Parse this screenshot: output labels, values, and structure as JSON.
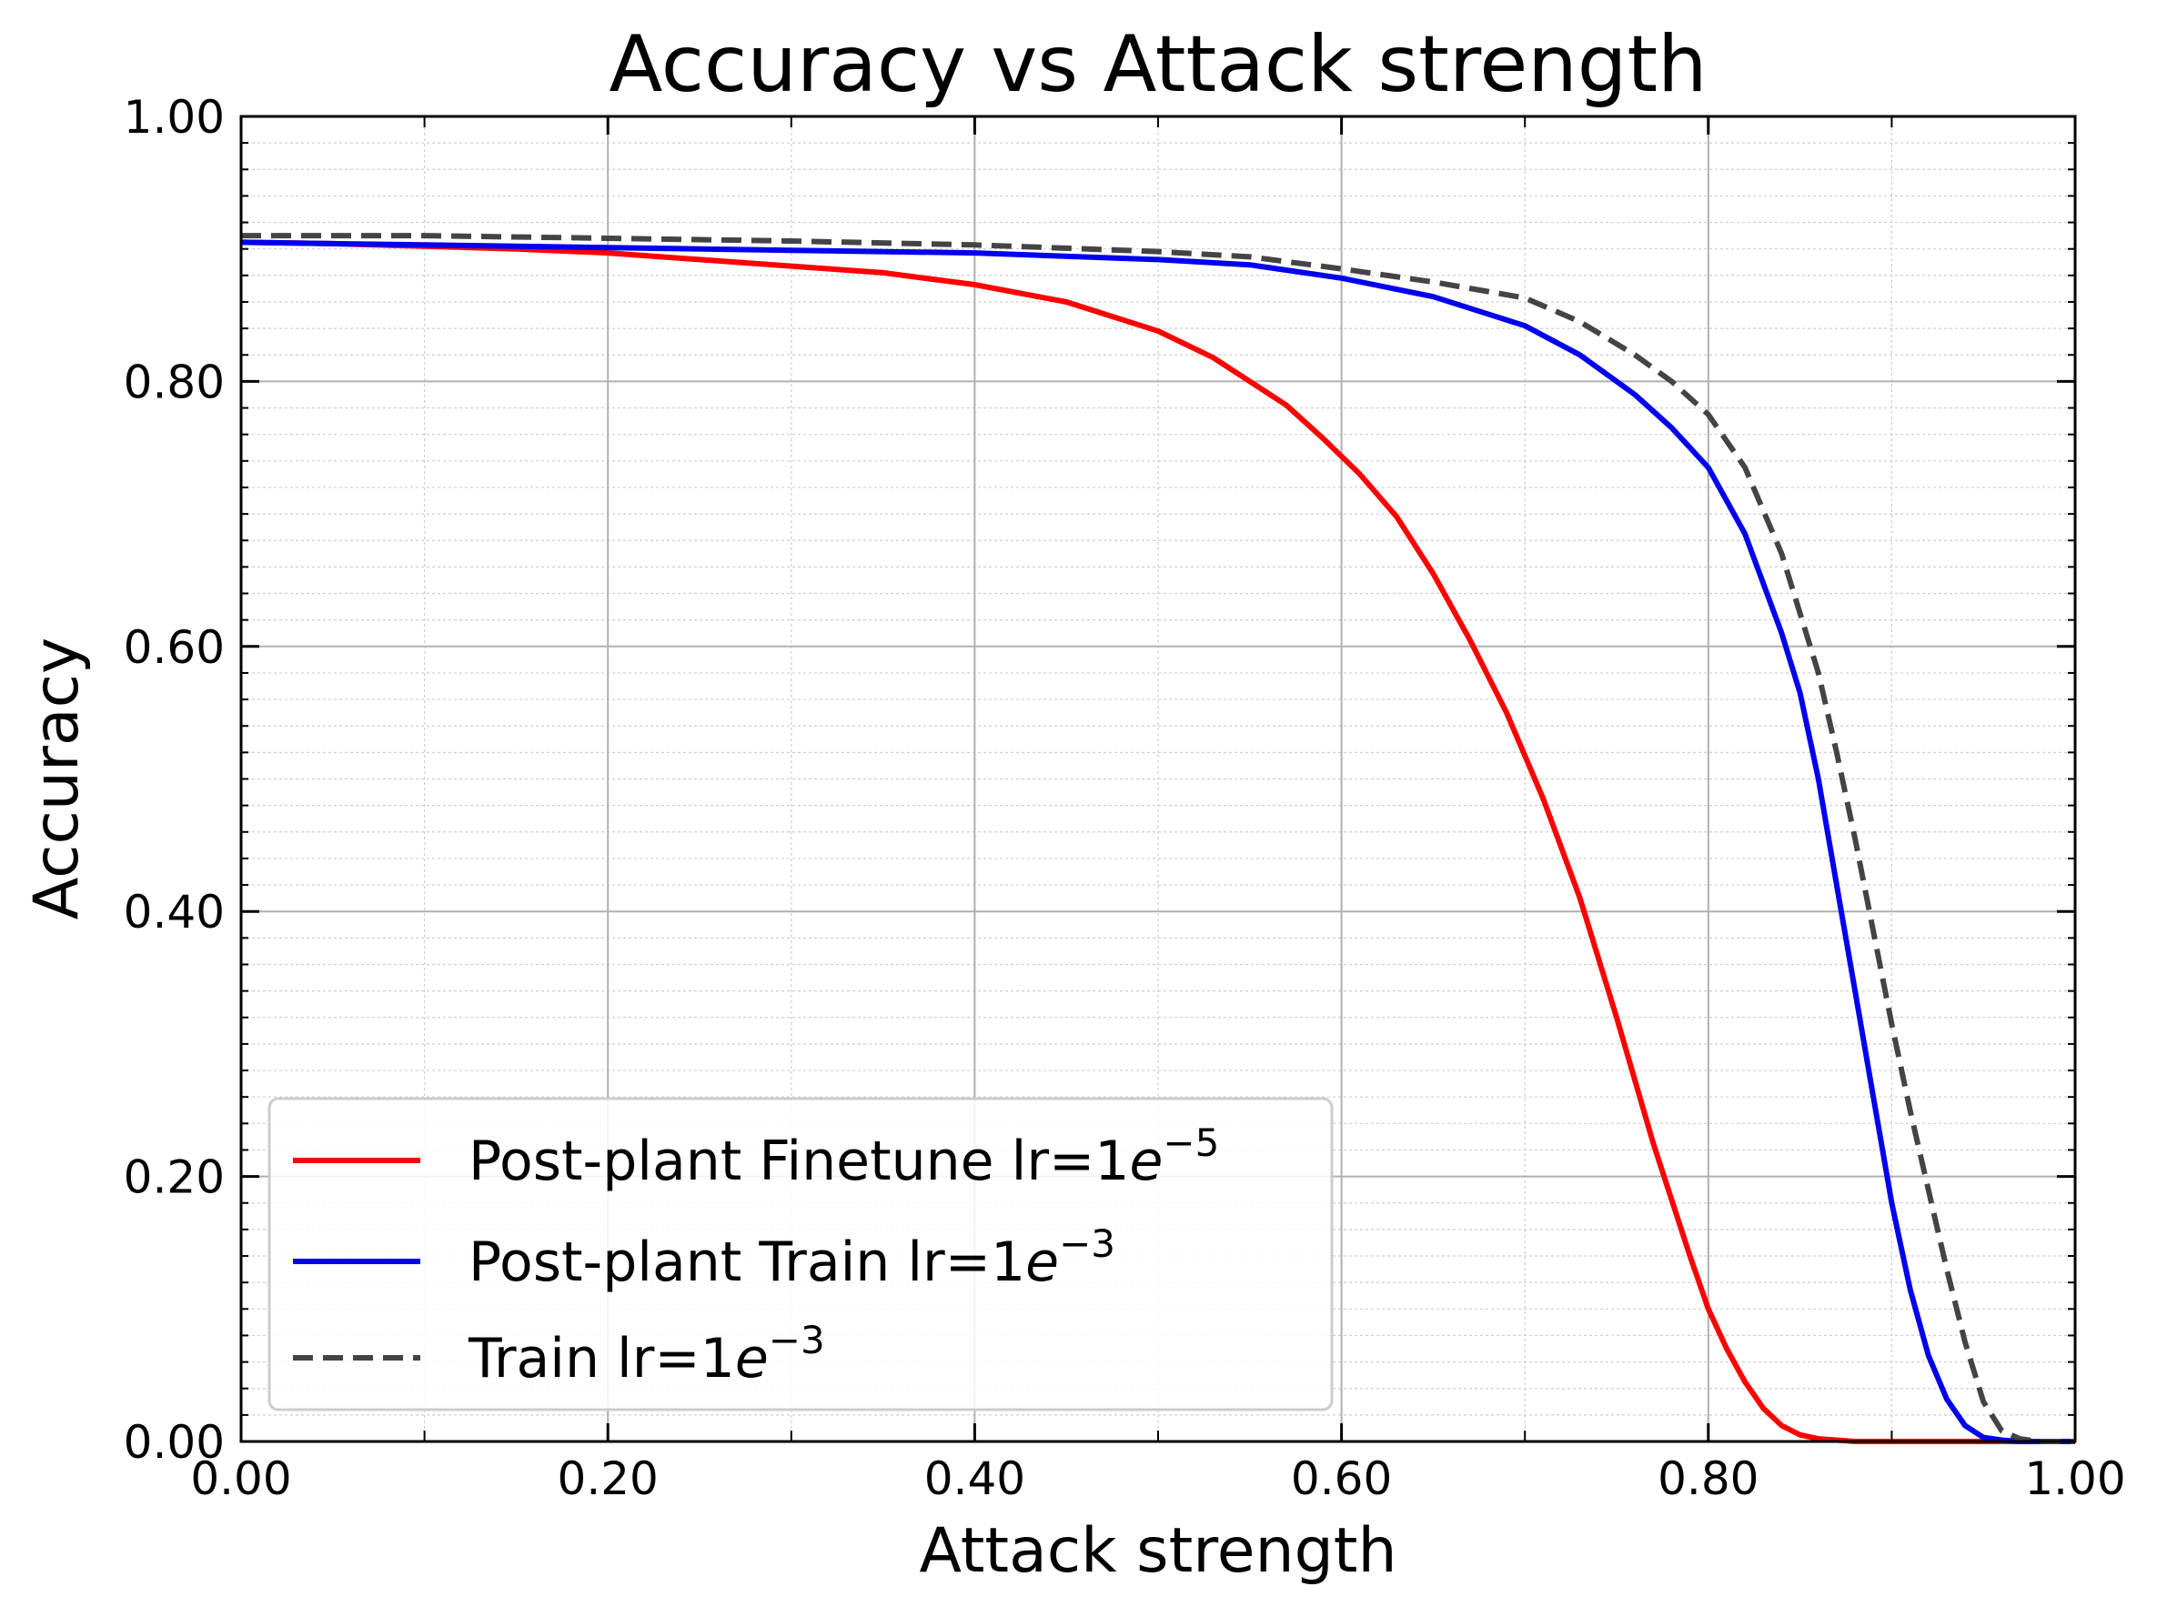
{
  "chart_data": {
    "type": "line",
    "title": "Accuracy vs Attack strength",
    "xlabel": "Attack strength",
    "ylabel": "Accuracy",
    "xlim": [
      0,
      1
    ],
    "ylim": [
      0,
      1
    ],
    "xticks": [
      "0.00",
      "0.20",
      "0.40",
      "0.60",
      "0.80",
      "1.00"
    ],
    "yticks": [
      "0.00",
      "0.20",
      "0.40",
      "0.60",
      "0.80",
      "1.00"
    ],
    "grid": true,
    "legend_position": "lower-left",
    "series": [
      {
        "name": "Post-plant Finetune lr=1e-5",
        "legend_base": "Post-plant Finetune lr=1",
        "legend_e": "e",
        "legend_exp": "−5",
        "color": "#ff0000",
        "style": "solid",
        "x": [
          0,
          0.05,
          0.1,
          0.15,
          0.2,
          0.25,
          0.3,
          0.35,
          0.4,
          0.45,
          0.5,
          0.53,
          0.55,
          0.57,
          0.59,
          0.61,
          0.63,
          0.65,
          0.67,
          0.69,
          0.71,
          0.73,
          0.75,
          0.77,
          0.79,
          0.8,
          0.81,
          0.82,
          0.83,
          0.84,
          0.85,
          0.86,
          0.87,
          0.88,
          0.9,
          0.95,
          1.0
        ],
        "y": [
          0.905,
          0.904,
          0.902,
          0.9,
          0.897,
          0.892,
          0.887,
          0.882,
          0.873,
          0.86,
          0.838,
          0.818,
          0.8,
          0.782,
          0.757,
          0.73,
          0.698,
          0.655,
          0.605,
          0.55,
          0.485,
          0.41,
          0.32,
          0.225,
          0.14,
          0.1,
          0.07,
          0.045,
          0.025,
          0.012,
          0.005,
          0.002,
          0.001,
          0.0,
          0.0,
          0.0,
          0.0
        ]
      },
      {
        "name": "Post-plant Train lr=1e-3",
        "legend_base": "Post-plant Train lr=1",
        "legend_e": "e",
        "legend_exp": "−3",
        "color": "#0000ee",
        "style": "solid",
        "x": [
          0,
          0.1,
          0.2,
          0.3,
          0.4,
          0.5,
          0.55,
          0.6,
          0.65,
          0.7,
          0.73,
          0.76,
          0.78,
          0.8,
          0.82,
          0.84,
          0.85,
          0.86,
          0.87,
          0.88,
          0.89,
          0.9,
          0.91,
          0.92,
          0.93,
          0.94,
          0.95,
          0.96,
          0.97,
          1.0
        ],
        "y": [
          0.905,
          0.903,
          0.901,
          0.899,
          0.897,
          0.892,
          0.888,
          0.878,
          0.864,
          0.842,
          0.82,
          0.79,
          0.765,
          0.735,
          0.685,
          0.61,
          0.565,
          0.5,
          0.42,
          0.34,
          0.26,
          0.18,
          0.115,
          0.065,
          0.032,
          0.012,
          0.003,
          0.001,
          0.0,
          0.0
        ]
      },
      {
        "name": "Train lr=1e-3",
        "legend_base": "Train lr=1",
        "legend_e": "e",
        "legend_exp": "−3",
        "color": "#444444",
        "style": "dashed",
        "x": [
          0,
          0.1,
          0.2,
          0.3,
          0.4,
          0.5,
          0.55,
          0.6,
          0.65,
          0.7,
          0.73,
          0.76,
          0.78,
          0.8,
          0.82,
          0.84,
          0.86,
          0.87,
          0.88,
          0.89,
          0.9,
          0.91,
          0.92,
          0.93,
          0.94,
          0.95,
          0.96,
          0.97,
          0.98,
          1.0
        ],
        "y": [
          0.91,
          0.91,
          0.908,
          0.906,
          0.903,
          0.898,
          0.894,
          0.885,
          0.875,
          0.863,
          0.845,
          0.82,
          0.8,
          0.775,
          0.735,
          0.67,
          0.58,
          0.52,
          0.455,
          0.385,
          0.315,
          0.25,
          0.19,
          0.13,
          0.075,
          0.03,
          0.008,
          0.002,
          0.0,
          0.0
        ]
      }
    ]
  }
}
